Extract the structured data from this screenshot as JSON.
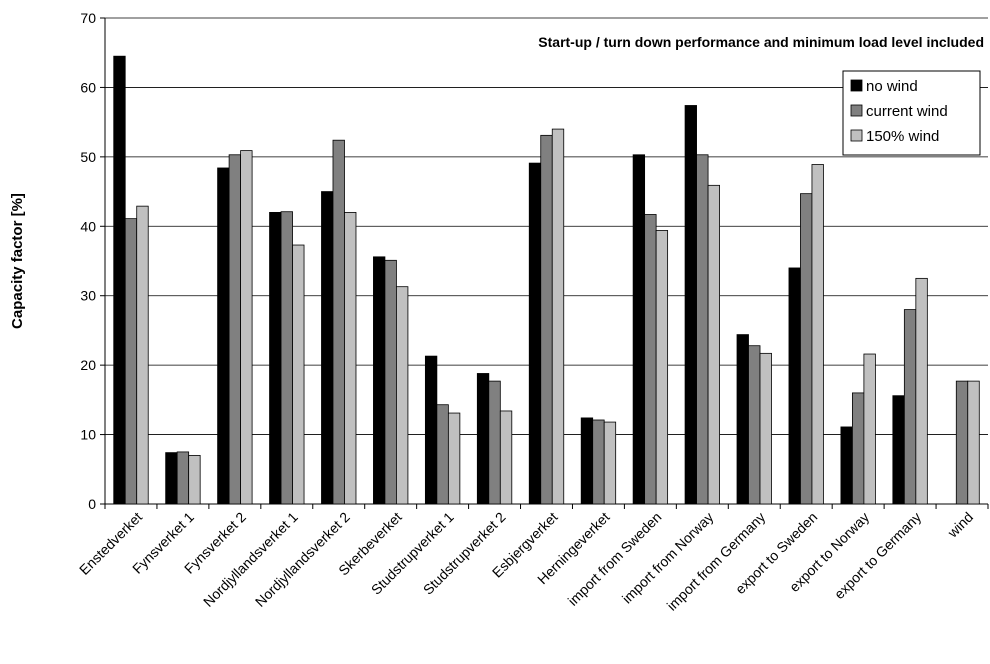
{
  "chart_data": {
    "type": "bar",
    "title": "Start-up / turn down performance and minimum load level included",
    "xlabel": "",
    "ylabel": "Capacity factor [%]",
    "ylim": [
      0,
      70
    ],
    "yticks": [
      0,
      10,
      20,
      30,
      40,
      50,
      60,
      70
    ],
    "grid": true,
    "legend_position": "top-right",
    "categories": [
      "Enstedverket",
      "Fynsverket 1",
      "Fynsverket 2",
      "Nordjyllandsverket 1",
      "Nordjyllandsverket 2",
      "Skerbeverket",
      "Studstrupverket 1",
      "Studstrupverket 2",
      "Esbjergverket",
      "Herningeverket",
      "import from Sweden",
      "import from Norway",
      "import from Germany",
      "export to Sweden",
      "export to Norway",
      "export to Germany",
      "wind"
    ],
    "series": [
      {
        "name": "no wind",
        "color": "#000000",
        "values": [
          64.5,
          7.4,
          48.4,
          42.0,
          45.0,
          35.6,
          21.3,
          18.8,
          49.1,
          12.4,
          50.3,
          57.4,
          24.4,
          34.0,
          11.1,
          15.6,
          0
        ]
      },
      {
        "name": "current wind",
        "color": "#808080",
        "values": [
          41.1,
          7.5,
          50.3,
          42.1,
          52.4,
          35.1,
          14.3,
          17.7,
          53.1,
          12.1,
          41.7,
          50.3,
          22.8,
          44.7,
          16.0,
          28.0,
          17.7
        ]
      },
      {
        "name": "150% wind",
        "color": "#c0c0c0",
        "values": [
          42.9,
          7.0,
          50.9,
          37.3,
          42.0,
          31.3,
          13.1,
          13.4,
          54.0,
          11.8,
          39.4,
          45.9,
          21.7,
          48.9,
          21.6,
          32.5,
          17.7
        ]
      }
    ]
  }
}
